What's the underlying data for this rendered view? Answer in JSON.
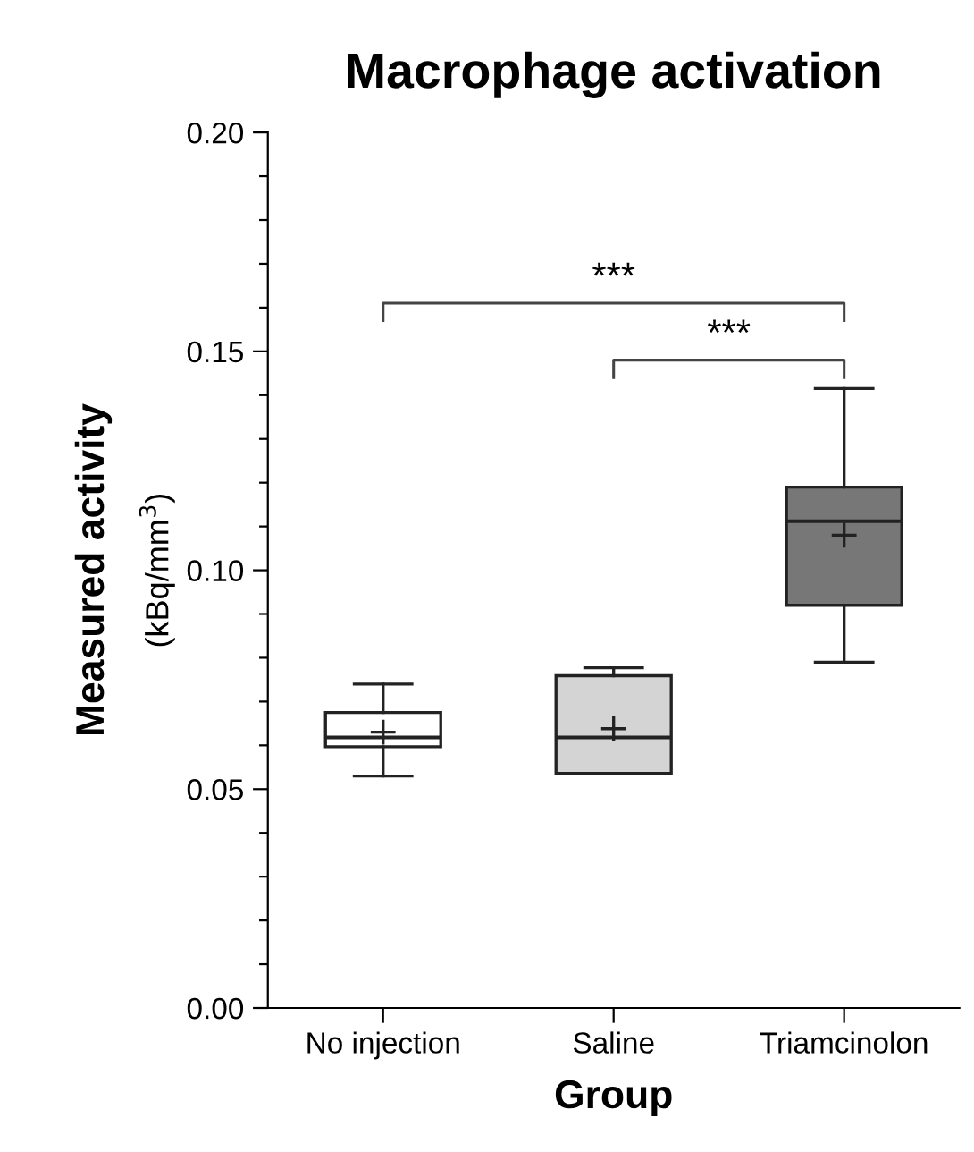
{
  "chart_data": {
    "type": "box",
    "title": "Macrophage activation",
    "xlabel": "Group",
    "ylabel": "Measured activity\n(kBq/mm$^{3}$)",
    "categories": [
      "No injection",
      "Saline",
      "Triamcinolon"
    ],
    "colors": [
      "#ffffff",
      "#d4d4d4",
      "#777777"
    ],
    "boxes": [
      {
        "low": 0.053,
        "q1": 0.0597,
        "median": 0.0618,
        "q3": 0.0675,
        "high": 0.074,
        "mean": 0.063
      },
      {
        "low": 0.0536,
        "q1": 0.0536,
        "median": 0.0618,
        "q3": 0.0759,
        "high": 0.0777,
        "mean": 0.0638
      },
      {
        "low": 0.079,
        "q1": 0.092,
        "median": 0.1112,
        "q3": 0.119,
        "high": 0.1415,
        "mean": 0.108
      }
    ],
    "ylim": [
      0,
      0.2
    ],
    "yticks": [
      {
        "value": 0,
        "label": "0.00"
      },
      {
        "value": 0.05,
        "label": "0.05"
      },
      {
        "value": 0.1,
        "label": "0.10"
      },
      {
        "value": 0.15,
        "label": "0.15"
      },
      {
        "value": 0.2,
        "label": "0.20"
      }
    ],
    "grid": false,
    "annotations": [
      "***",
      "***"
    ]
  }
}
